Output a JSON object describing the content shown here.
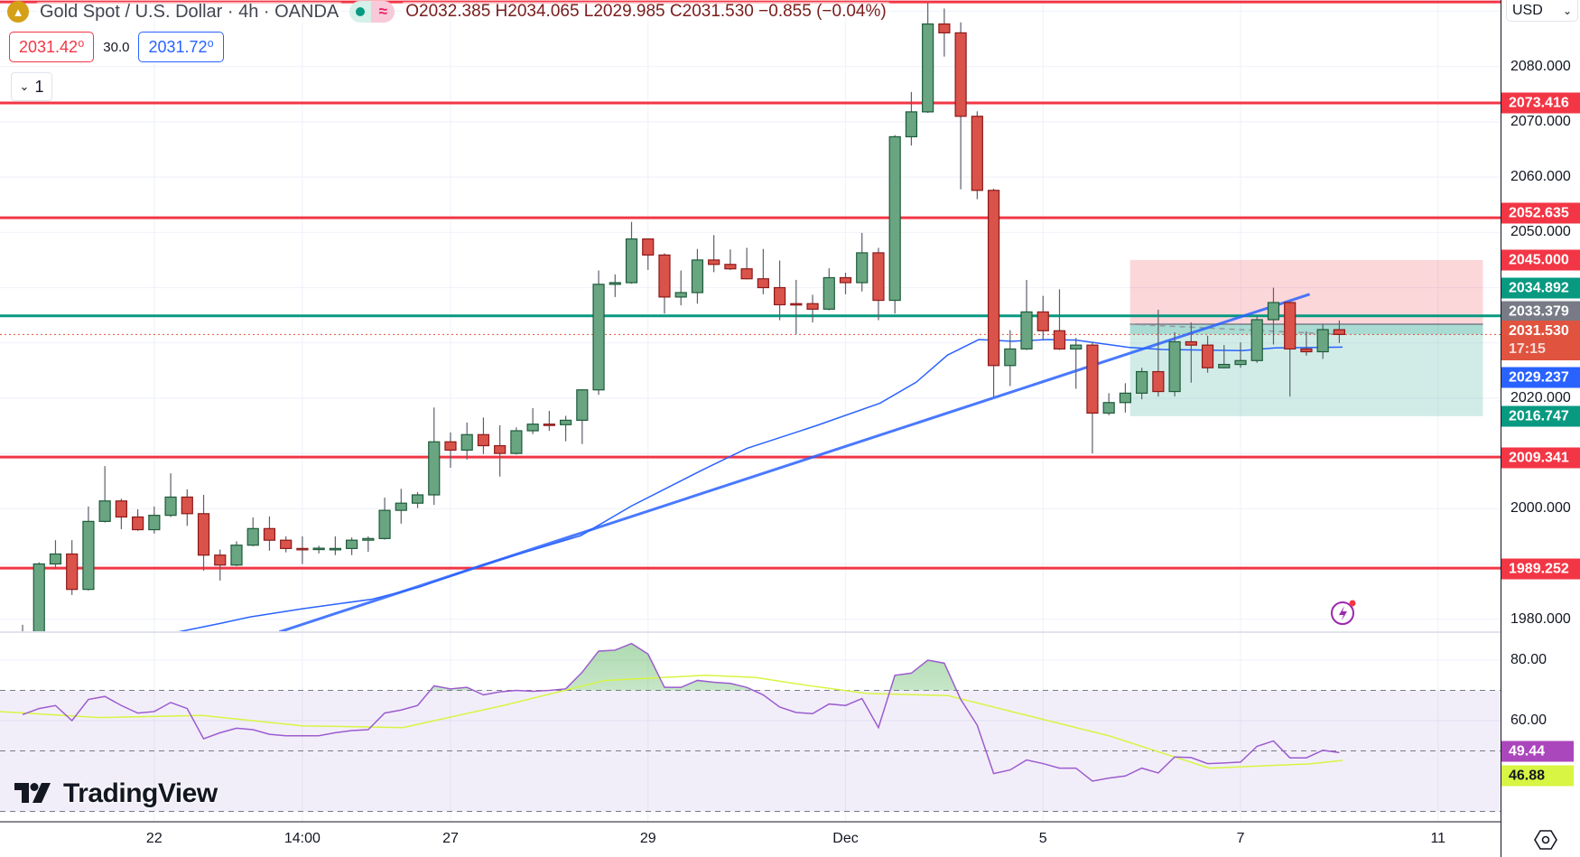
{
  "header": {
    "symbol_icon": "gold-bars-icon",
    "title": "Gold Spot / U.S. Dollar · 4h · OANDA",
    "status_icons": [
      "market-open-dot-icon",
      "wave-icon"
    ],
    "ohlc": {
      "open": "O2032.385",
      "high": "H2034.065",
      "low": "L2029.985",
      "close": "C2031.530",
      "change": "−0.855 (−0.04%)"
    },
    "sell_price": "2031.42⁰",
    "spread": "30.0",
    "buy_price": "2031.72⁰",
    "collapse_count": "1"
  },
  "price_axis": {
    "currency": "USD",
    "ticks": [
      "2080.000",
      "2070.000",
      "2060.000",
      "2050.000",
      "2020.000",
      "2000.000",
      "1980.000"
    ],
    "labels": [
      {
        "text": "2073.416",
        "color": "#f23645"
      },
      {
        "text": "2052.635",
        "color": "#f23645"
      },
      {
        "text": "2045.000",
        "color": "#f23645"
      },
      {
        "text": "2034.892",
        "color": "#089981"
      },
      {
        "text": "2033.379",
        "color": "#787b86"
      },
      {
        "text": "2031.530",
        "sub": "17:15",
        "color": "#e0533f"
      },
      {
        "text": "2029.237",
        "color": "#2962ff"
      },
      {
        "text": "2016.747",
        "color": "#089981"
      },
      {
        "text": "2009.341",
        "color": "#f23645"
      },
      {
        "text": "1989.252",
        "color": "#f23645"
      }
    ]
  },
  "rsi_axis": {
    "ticks": [
      "80.00",
      "60.00"
    ],
    "labels": [
      {
        "text": "49.44",
        "color": "#ab47bc"
      },
      {
        "text": "46.88",
        "color": "#d7f542"
      }
    ]
  },
  "time_axis": {
    "ticks": [
      {
        "label": "22",
        "bar": 8
      },
      {
        "label": "14:00",
        "bar": 17
      },
      {
        "label": "27",
        "bar": 26
      },
      {
        "label": "29",
        "bar": 38
      },
      {
        "label": "Dec",
        "bar": 50
      },
      {
        "label": "5",
        "bar": 62
      },
      {
        "label": "7",
        "bar": 74
      },
      {
        "label": "11",
        "bar": 86
      }
    ]
  },
  "branding": {
    "logo": "TradingView"
  },
  "icons": {
    "alert": "lightning-icon",
    "settings": "eye-settings-icon"
  },
  "chart_data": {
    "type": "candlestick",
    "interval": "4h",
    "y_range": [
      1977.7,
      2092.0
    ],
    "grid": true,
    "colors": {
      "up": "#6aa582",
      "down": "#d9534a",
      "up_border": "#1e5a3a",
      "down_border": "#8b1a1a",
      "ma": "#2962ff",
      "trendline": "#2962ff",
      "rsi": "#9c5ccf",
      "rsi_ma": "#d7f542"
    },
    "candles_ohlc": [
      [
        1975,
        1979,
        1974,
        1977
      ],
      [
        1977,
        1990.3,
        1975,
        1990.0
      ],
      [
        1990,
        1994.3,
        1989.1,
        1991.8
      ],
      [
        1991.8,
        1994.3,
        1984.4,
        1985.4
      ],
      [
        1985.4,
        2000.4,
        1985.2,
        1997.7
      ],
      [
        1997.7,
        2007.7,
        1997.5,
        2001.4
      ],
      [
        2001.4,
        2001.8,
        1996.3,
        1998.5
      ],
      [
        1998.5,
        1999.9,
        1996.0,
        1996.2
      ],
      [
        1996.2,
        2000.4,
        1995.5,
        1998.8
      ],
      [
        1998.8,
        2006.4,
        1998.5,
        2002.1
      ],
      [
        2002.1,
        2003.5,
        1996.9,
        1999.1
      ],
      [
        1999.1,
        2002.5,
        1988.8,
        1991.6
      ],
      [
        1991.6,
        1992.6,
        1987.0,
        1989.8
      ],
      [
        1989.8,
        1994.1,
        1989.6,
        1993.4
      ],
      [
        1993.4,
        1998.4,
        1993.2,
        1996.4
      ],
      [
        1996.4,
        1998.6,
        1992.4,
        1994.3
      ],
      [
        1994.3,
        1995.0,
        1992.1,
        1992.8
      ],
      [
        1992.8,
        1995.0,
        1990.0,
        1992.75
      ],
      [
        1992.8,
        1993.3,
        1991.9,
        1992.85
      ],
      [
        1992.8,
        1995.0,
        1991.6,
        1992.8
      ],
      [
        1992.8,
        1994.8,
        1991.6,
        1994.3
      ],
      [
        1994.3,
        1995.0,
        1992.2,
        1994.6
      ],
      [
        1994.6,
        2002.0,
        1994.4,
        1999.7
      ],
      [
        1999.7,
        2003.6,
        1997.3,
        2001.0
      ],
      [
        2001.0,
        2003.0,
        2000.1,
        2002.5
      ],
      [
        2002.5,
        2018.3,
        2000.7,
        2012.1
      ],
      [
        2012.1,
        2013.8,
        2007.4,
        2010.6
      ],
      [
        2010.6,
        2015.6,
        2008.9,
        2013.4
      ],
      [
        2013.4,
        2016.5,
        2009.9,
        2011.4
      ],
      [
        2011.4,
        2015.1,
        2005.8,
        2010.0
      ],
      [
        2010.0,
        2014.7,
        2009.8,
        2014.1
      ],
      [
        2014.1,
        2018.2,
        2013.5,
        2015.3
      ],
      [
        2015.3,
        2017.7,
        2014.1,
        2015.2
      ],
      [
        2015.2,
        2016.8,
        2012.2,
        2016.0
      ],
      [
        2016.0,
        2021.6,
        2011.7,
        2021.5
      ],
      [
        2021.5,
        2043.1,
        2020.6,
        2040.6
      ],
      [
        2040.6,
        2042.4,
        2038.3,
        2040.9
      ],
      [
        2040.9,
        2051.9,
        2040.7,
        2048.8
      ],
      [
        2048.8,
        2048.9,
        2043.2,
        2045.9
      ],
      [
        2045.9,
        2046.2,
        2035.3,
        2038.3
      ],
      [
        2038.3,
        2043.1,
        2036.8,
        2039.1
      ],
      [
        2039.1,
        2047.0,
        2037.1,
        2045.0
      ],
      [
        2045.0,
        2049.5,
        2042.8,
        2044.2
      ],
      [
        2044.2,
        2046.9,
        2043.2,
        2043.4
      ],
      [
        2043.4,
        2047.2,
        2041.5,
        2041.6
      ],
      [
        2041.6,
        2047.0,
        2038.8,
        2040.0
      ],
      [
        2040.0,
        2044.9,
        2034.1,
        2036.9
      ],
      [
        2037.1,
        2041.4,
        2031.6,
        2037.05
      ],
      [
        2037.1,
        2038.7,
        2033.7,
        2036.1
      ],
      [
        2036.1,
        2043.5,
        2035.9,
        2041.8
      ],
      [
        2041.8,
        2042.7,
        2038.8,
        2040.9
      ],
      [
        2040.9,
        2049.9,
        2039.3,
        2046.3
      ],
      [
        2046.3,
        2047.2,
        2034.1,
        2037.7
      ],
      [
        2037.7,
        2067.6,
        2035.3,
        2067.3
      ],
      [
        2067.3,
        2075.4,
        2065.7,
        2071.8
      ],
      [
        2071.8,
        2091.5,
        2071.6,
        2087.7
      ],
      [
        2087.7,
        2090.5,
        2081.8,
        2086.1
      ],
      [
        2086.1,
        2088.0,
        2057.8,
        2071.0
      ],
      [
        2071.0,
        2071.9,
        2056.0,
        2057.6
      ],
      [
        2057.6,
        2057.9,
        2020.3,
        2025.9
      ],
      [
        2025.9,
        2032.3,
        2022.2,
        2028.9
      ],
      [
        2028.9,
        2041.4,
        2028.7,
        2035.6
      ],
      [
        2035.6,
        2038.5,
        2030.6,
        2032.2
      ],
      [
        2032.2,
        2039.7,
        2028.7,
        2028.9
      ],
      [
        2028.9,
        2030.9,
        2021.7,
        2029.6
      ],
      [
        2029.6,
        2030.2,
        2010.0,
        2017.3
      ],
      [
        2017.3,
        2020.9,
        2016.9,
        2019.2
      ],
      [
        2019.2,
        2022.7,
        2017.4,
        2020.9
      ],
      [
        2020.9,
        2025.5,
        2019.8,
        2024.8
      ],
      [
        2024.8,
        2036.0,
        2020.3,
        2021.2
      ],
      [
        2021.2,
        2031.9,
        2020.3,
        2030.2
      ],
      [
        2030.2,
        2033.7,
        2022.8,
        2029.6
      ],
      [
        2029.6,
        2031.3,
        2024.6,
        2025.5
      ],
      [
        2025.5,
        2029.6,
        2025.4,
        2026.1
      ],
      [
        2026.1,
        2030.1,
        2025.5,
        2026.8
      ],
      [
        2026.8,
        2034.9,
        2026.4,
        2034.2
      ],
      [
        2034.2,
        2040.0,
        2029.7,
        2037.3
      ],
      [
        2037.3,
        2037.4,
        2020.3,
        2028.9
      ],
      [
        2028.9,
        2032.1,
        2027.7,
        2028.4
      ],
      [
        2028.4,
        2033.4,
        2027.1,
        2032.4
      ],
      [
        2032.385,
        2034.065,
        2029.985,
        2031.53
      ]
    ],
    "moving_average": [
      [
        9.3,
        1977.6
      ],
      [
        12.1,
        1979.3
      ],
      [
        13.8,
        1980.4
      ],
      [
        17,
        1981.9
      ],
      [
        21.2,
        1983.6
      ],
      [
        24.1,
        1985.8
      ],
      [
        28,
        1989.9
      ],
      [
        33.9,
        1995.1
      ],
      [
        37,
        2000.5
      ],
      [
        41.3,
        2007.0
      ],
      [
        44,
        2010.9
      ],
      [
        48.2,
        2015.0
      ],
      [
        52.1,
        2019.1
      ],
      [
        54.3,
        2022.9
      ],
      [
        56.2,
        2027.8
      ],
      [
        58.1,
        2030.6
      ],
      [
        60.1,
        2030.3
      ],
      [
        62.3,
        2030.6
      ],
      [
        64,
        2030.5
      ],
      [
        67.2,
        2029.2
      ],
      [
        69.2,
        2028.8
      ],
      [
        74.1,
        2028.6
      ],
      [
        76.1,
        2029.1
      ],
      [
        80.2,
        2029.237
      ]
    ],
    "trendline": [
      [
        15.6,
        1977.7
      ],
      [
        78.2,
        2038.8
      ]
    ],
    "horizontal_levels": [
      {
        "price": 2091.7,
        "color": "#f23645"
      },
      {
        "price": 2073.416,
        "color": "#f23645"
      },
      {
        "price": 2052.635,
        "color": "#f23645"
      },
      {
        "price": 2034.892,
        "color": "#089981"
      },
      {
        "price": 2009.341,
        "color": "#f23645"
      },
      {
        "price": 1989.252,
        "color": "#f23645"
      }
    ],
    "last_price": 2031.53,
    "short_position": {
      "start_bar": 68,
      "end_bar": 89,
      "stop": 2045.0,
      "entry": 2033.379,
      "target": 2016.747
    },
    "rsi": {
      "range": [
        26.5,
        89.25
      ],
      "bands": [
        70,
        50,
        30
      ],
      "values": [
        62,
        64,
        65,
        60,
        67,
        68,
        65,
        62.5,
        63,
        66,
        64,
        54,
        56,
        57.5,
        57,
        55.5,
        55,
        55,
        55,
        56,
        56.7,
        57,
        62.5,
        63.5,
        65,
        71.5,
        70.5,
        71,
        68.5,
        69.5,
        70,
        69.7,
        70,
        70.5,
        76,
        83,
        83.3,
        85.5,
        82,
        71,
        71,
        73.3,
        72.7,
        72.3,
        71,
        68.5,
        64.5,
        62.7,
        62.3,
        65.5,
        65,
        67.3,
        57.7,
        75,
        75.7,
        80,
        79,
        67,
        58.5,
        42.5,
        43.7,
        47,
        45.8,
        44.3,
        44.3,
        40,
        41,
        41.7,
        44.3,
        42.7,
        48,
        47.8,
        45.8,
        46,
        46.3,
        51.5,
        53.3,
        47.7,
        47.7,
        50.2,
        49.44
      ],
      "ma": [
        [
          -1.4,
          63
        ],
        [
          4.7,
          61
        ],
        [
          10.9,
          61.7
        ],
        [
          17,
          58.3
        ],
        [
          23.1,
          57.7
        ],
        [
          29.2,
          65
        ],
        [
          35.4,
          73.3
        ],
        [
          41.5,
          75
        ],
        [
          44.5,
          74.3
        ],
        [
          47.6,
          71.7
        ],
        [
          51.3,
          69
        ],
        [
          56.2,
          68.3
        ],
        [
          62.3,
          60
        ],
        [
          66,
          55
        ],
        [
          72.1,
          44.3
        ],
        [
          78.2,
          45.7
        ],
        [
          80.2,
          46.88
        ]
      ]
    }
  }
}
